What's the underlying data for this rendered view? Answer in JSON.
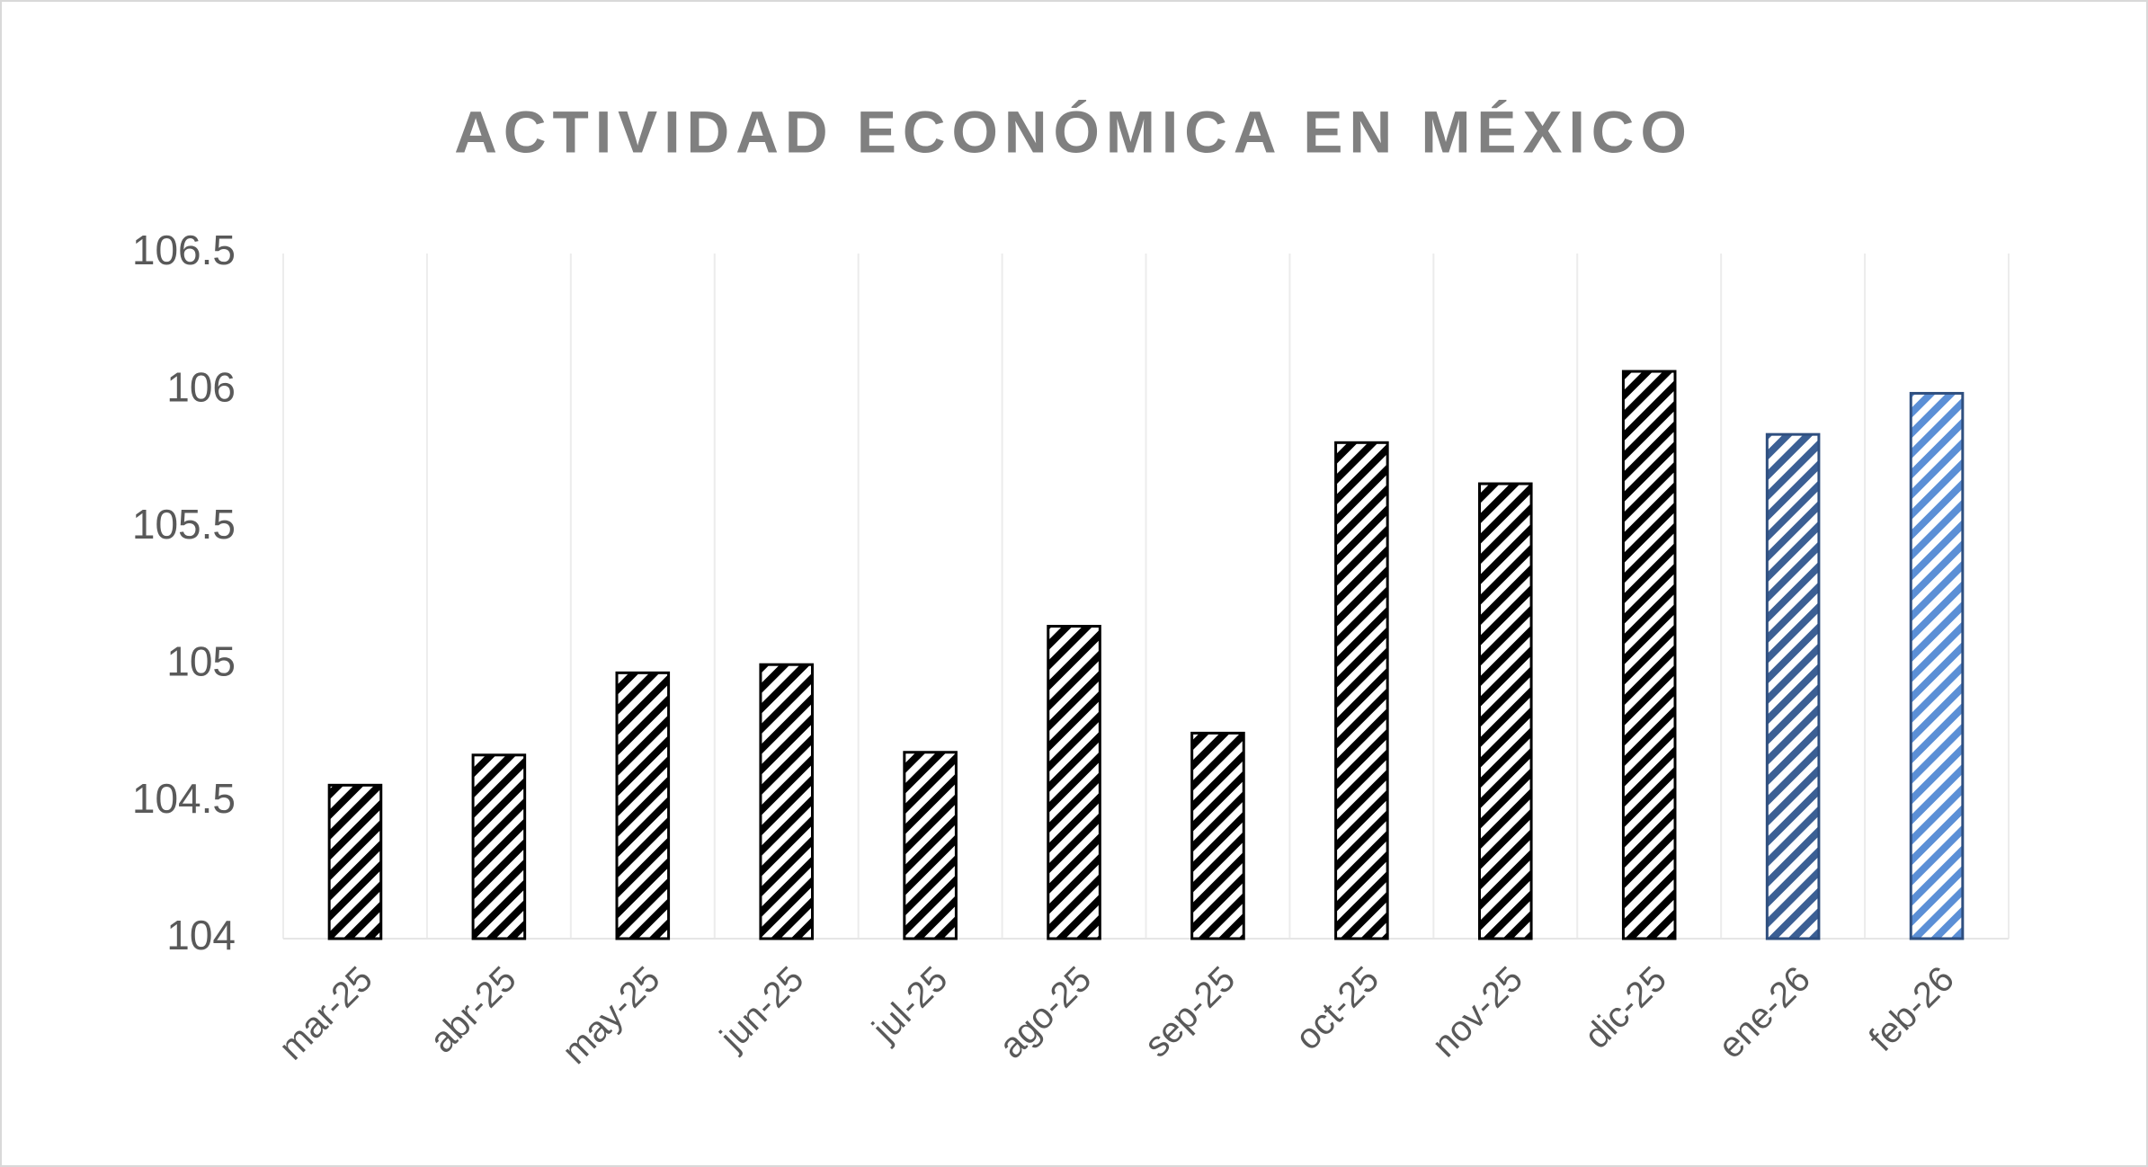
{
  "chart_data": {
    "type": "bar",
    "title": "ACTIVIDAD ECONÓMICA EN MÉXICO",
    "categories": [
      "mar-25",
      "abr-25",
      "may-25",
      "jun-25",
      "jul-25",
      "ago-25",
      "sep-25",
      "oct-25",
      "nov-25",
      "dic-25",
      "ene-26",
      "feb-26"
    ],
    "values": [
      104.56,
      104.67,
      104.97,
      105.0,
      104.68,
      105.14,
      104.75,
      105.81,
      105.66,
      106.07,
      105.84,
      105.99
    ],
    "colors": [
      "#000000",
      "#000000",
      "#000000",
      "#000000",
      "#000000",
      "#000000",
      "#000000",
      "#000000",
      "#000000",
      "#000000",
      "#3b5f94",
      "#5b8fd6"
    ],
    "ylim": [
      104,
      106.5
    ],
    "yticks": [
      104,
      104.5,
      105,
      105.5,
      106,
      106.5
    ],
    "grid": true
  }
}
